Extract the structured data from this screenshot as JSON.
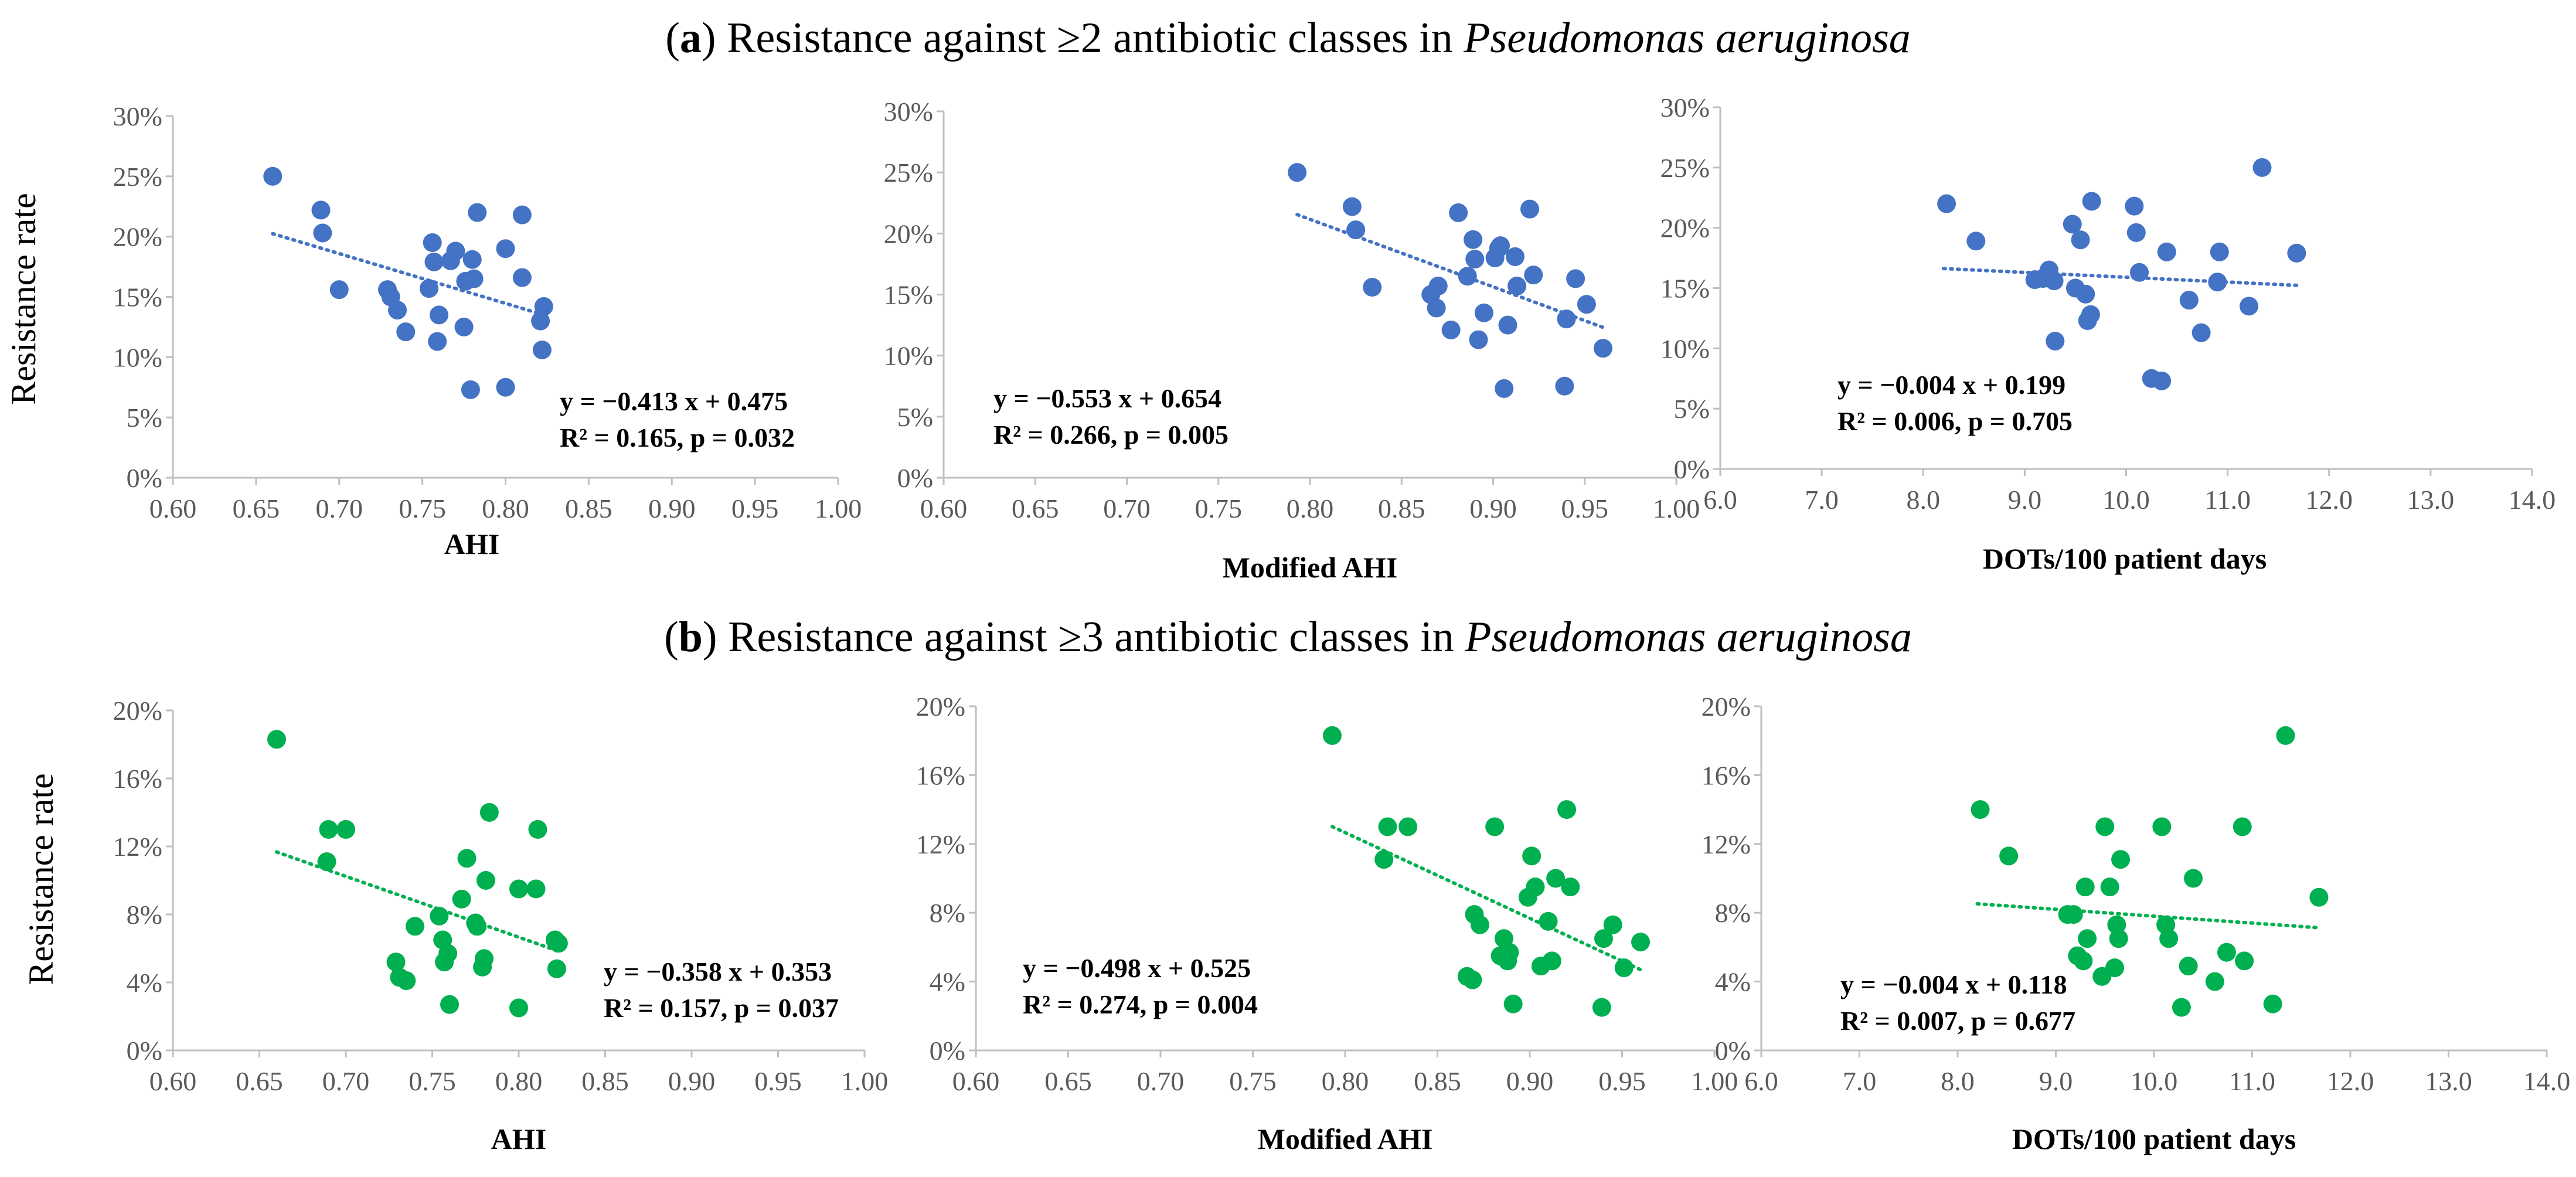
{
  "row_titles": {
    "a": {
      "label": "a",
      "text_before": "Resistance against ≥2 antibiotic classes in ",
      "species": "Pseudomonas aeruginosa"
    },
    "b": {
      "label": "b",
      "text_before": "Resistance against ≥3 antibiotic classes in ",
      "species": "Pseudomonas aeruginosa"
    }
  },
  "colors": {
    "row_a": "#4472c4",
    "row_b": "#00b050",
    "axis": "#bfbfbf",
    "tick_text": "#595959"
  },
  "chart_data": [
    {
      "id": "a1",
      "type": "scatter",
      "row": "a",
      "xlabel": "AHI",
      "ylabel": "Resistance rate",
      "xlim": [
        0.6,
        1.0
      ],
      "xticks": [
        0.6,
        0.65,
        0.7,
        0.75,
        0.8,
        0.85,
        0.9,
        0.95,
        1.0
      ],
      "xdec": 2,
      "ylim": [
        0,
        0.3
      ],
      "yticks": [
        0,
        0.05,
        0.1,
        0.15,
        0.2,
        0.25,
        0.3
      ],
      "trend": {
        "slope": -0.413,
        "intercept": 0.475,
        "x_range": [
          0.66,
          0.823
        ]
      },
      "equation": "y = −0.413 x + 0.475",
      "stats": "R² = 0.165, p = 0.032",
      "points": [
        [
          0.66,
          0.25
        ],
        [
          0.689,
          0.222
        ],
        [
          0.69,
          0.203
        ],
        [
          0.7,
          0.156
        ],
        [
          0.729,
          0.156
        ],
        [
          0.731,
          0.15
        ],
        [
          0.735,
          0.139
        ],
        [
          0.74,
          0.121
        ],
        [
          0.754,
          0.157
        ],
        [
          0.756,
          0.195
        ],
        [
          0.757,
          0.179
        ],
        [
          0.759,
          0.113
        ],
        [
          0.76,
          0.135
        ],
        [
          0.767,
          0.18
        ],
        [
          0.77,
          0.188
        ],
        [
          0.775,
          0.125
        ],
        [
          0.776,
          0.163
        ],
        [
          0.779,
          0.073
        ],
        [
          0.78,
          0.181
        ],
        [
          0.781,
          0.165
        ],
        [
          0.783,
          0.22
        ],
        [
          0.8,
          0.075
        ],
        [
          0.8,
          0.19
        ],
        [
          0.81,
          0.166
        ],
        [
          0.81,
          0.218
        ],
        [
          0.821,
          0.13
        ],
        [
          0.822,
          0.106
        ],
        [
          0.823,
          0.142
        ]
      ]
    },
    {
      "id": "a2",
      "type": "scatter",
      "row": "a",
      "xlabel": "Modified AHI",
      "ylabel": "",
      "xlim": [
        0.6,
        1.0
      ],
      "xticks": [
        0.6,
        0.65,
        0.7,
        0.75,
        0.8,
        0.85,
        0.9,
        0.95,
        1.0
      ],
      "xdec": 2,
      "ylim": [
        0,
        0.3
      ],
      "yticks": [
        0,
        0.05,
        0.1,
        0.15,
        0.2,
        0.25,
        0.3
      ],
      "trend": {
        "slope": -0.553,
        "intercept": 0.654,
        "x_range": [
          0.793,
          0.96
        ]
      },
      "equation": "y = −0.553 x + 0.654",
      "stats": "R² = 0.266, p = 0.005",
      "points": [
        [
          0.793,
          0.25
        ],
        [
          0.823,
          0.222
        ],
        [
          0.825,
          0.203
        ],
        [
          0.834,
          0.156
        ],
        [
          0.866,
          0.15
        ],
        [
          0.869,
          0.139
        ],
        [
          0.87,
          0.157
        ],
        [
          0.877,
          0.121
        ],
        [
          0.881,
          0.217
        ],
        [
          0.886,
          0.165
        ],
        [
          0.889,
          0.195
        ],
        [
          0.89,
          0.179
        ],
        [
          0.892,
          0.113
        ],
        [
          0.895,
          0.135
        ],
        [
          0.901,
          0.18
        ],
        [
          0.903,
          0.188
        ],
        [
          0.906,
          0.073
        ],
        [
          0.908,
          0.125
        ],
        [
          0.912,
          0.181
        ],
        [
          0.913,
          0.157
        ],
        [
          0.92,
          0.22
        ],
        [
          0.922,
          0.166
        ],
        [
          0.939,
          0.075
        ],
        [
          0.94,
          0.13
        ],
        [
          0.945,
          0.163
        ],
        [
          0.951,
          0.142
        ],
        [
          0.96,
          0.106
        ],
        [
          0.904,
          0.19
        ]
      ]
    },
    {
      "id": "a3",
      "type": "scatter",
      "row": "a",
      "xlabel": "DOTs/100 patient days",
      "ylabel": "",
      "xlim": [
        6.0,
        14.0
      ],
      "xticks": [
        6,
        7,
        8,
        9,
        10,
        11,
        12,
        13,
        14
      ],
      "xdec": 1,
      "ylim": [
        0,
        0.3
      ],
      "yticks": [
        0,
        0.05,
        0.1,
        0.15,
        0.2,
        0.25,
        0.3
      ],
      "trend": {
        "slope": -0.004,
        "intercept": 0.199,
        "x_range": [
          8.2,
          11.7
        ]
      },
      "equation": "y = −0.004 x + 0.199",
      "stats": "R² = 0.006, p = 0.705",
      "points": [
        [
          8.23,
          0.22
        ],
        [
          8.52,
          0.189
        ],
        [
          9.1,
          0.157
        ],
        [
          9.21,
          0.16
        ],
        [
          9.24,
          0.165
        ],
        [
          9.29,
          0.156
        ],
        [
          9.3,
          0.106
        ],
        [
          9.47,
          0.203
        ],
        [
          9.5,
          0.15
        ],
        [
          9.55,
          0.19
        ],
        [
          9.6,
          0.145
        ],
        [
          9.62,
          0.123
        ],
        [
          9.65,
          0.128
        ],
        [
          9.66,
          0.222
        ],
        [
          10.08,
          0.218
        ],
        [
          10.1,
          0.196
        ],
        [
          10.13,
          0.163
        ],
        [
          10.25,
          0.075
        ],
        [
          10.35,
          0.073
        ],
        [
          10.4,
          0.18
        ],
        [
          10.62,
          0.14
        ],
        [
          10.74,
          0.113
        ],
        [
          10.9,
          0.155
        ],
        [
          10.92,
          0.18
        ],
        [
          11.21,
          0.135
        ],
        [
          11.34,
          0.25
        ],
        [
          11.68,
          0.179
        ],
        [
          9.18,
          0.158
        ]
      ]
    },
    {
      "id": "b1",
      "type": "scatter",
      "row": "b",
      "xlabel": "AHI",
      "ylabel": "Resistance rate",
      "xlim": [
        0.6,
        1.0
      ],
      "xticks": [
        0.6,
        0.65,
        0.7,
        0.75,
        0.8,
        0.85,
        0.9,
        0.95,
        1.0
      ],
      "xdec": 2,
      "ylim": [
        0,
        0.2
      ],
      "yticks": [
        0,
        0.04,
        0.08,
        0.12,
        0.16,
        0.2
      ],
      "trend": {
        "slope": -0.358,
        "intercept": 0.353,
        "x_range": [
          0.66,
          0.823
        ]
      },
      "equation": "y = −0.358 x + 0.353",
      "stats": "R² = 0.157, p = 0.037",
      "points": [
        [
          0.66,
          0.183
        ],
        [
          0.689,
          0.111
        ],
        [
          0.69,
          0.13
        ],
        [
          0.7,
          0.13
        ],
        [
          0.729,
          0.052
        ],
        [
          0.731,
          0.043
        ],
        [
          0.735,
          0.041
        ],
        [
          0.74,
          0.073
        ],
        [
          0.754,
          0.079
        ],
        [
          0.756,
          0.065
        ],
        [
          0.757,
          0.052
        ],
        [
          0.759,
          0.057
        ],
        [
          0.76,
          0.027
        ],
        [
          0.767,
          0.089
        ],
        [
          0.77,
          0.113
        ],
        [
          0.775,
          0.075
        ],
        [
          0.776,
          0.073
        ],
        [
          0.779,
          0.049
        ],
        [
          0.78,
          0.054
        ],
        [
          0.781,
          0.1
        ],
        [
          0.783,
          0.14
        ],
        [
          0.8,
          0.025
        ],
        [
          0.8,
          0.095
        ],
        [
          0.81,
          0.095
        ],
        [
          0.811,
          0.13
        ],
        [
          0.821,
          0.065
        ],
        [
          0.822,
          0.048
        ],
        [
          0.823,
          0.063
        ]
      ]
    },
    {
      "id": "b2",
      "type": "scatter",
      "row": "b",
      "xlabel": "Modified AHI",
      "ylabel": "",
      "xlim": [
        0.6,
        1.0
      ],
      "xticks": [
        0.6,
        0.65,
        0.7,
        0.75,
        0.8,
        0.85,
        0.9,
        0.95,
        1.0
      ],
      "xdec": 2,
      "ylim": [
        0,
        0.2
      ],
      "yticks": [
        0,
        0.04,
        0.08,
        0.12,
        0.16,
        0.2
      ],
      "trend": {
        "slope": -0.498,
        "intercept": 0.525,
        "x_range": [
          0.793,
          0.96
        ]
      },
      "equation": "y = −0.498 x + 0.525",
      "stats": "R² = 0.274, p = 0.004",
      "points": [
        [
          0.793,
          0.183
        ],
        [
          0.821,
          0.111
        ],
        [
          0.823,
          0.13
        ],
        [
          0.834,
          0.13
        ],
        [
          0.866,
          0.043
        ],
        [
          0.869,
          0.041
        ],
        [
          0.87,
          0.079
        ],
        [
          0.873,
          0.073
        ],
        [
          0.881,
          0.13
        ],
        [
          0.884,
          0.055
        ],
        [
          0.886,
          0.065
        ],
        [
          0.888,
          0.052
        ],
        [
          0.889,
          0.057
        ],
        [
          0.891,
          0.027
        ],
        [
          0.899,
          0.089
        ],
        [
          0.901,
          0.113
        ],
        [
          0.903,
          0.095
        ],
        [
          0.906,
          0.049
        ],
        [
          0.91,
          0.075
        ],
        [
          0.912,
          0.052
        ],
        [
          0.914,
          0.1
        ],
        [
          0.92,
          0.14
        ],
        [
          0.922,
          0.095
        ],
        [
          0.939,
          0.025
        ],
        [
          0.94,
          0.065
        ],
        [
          0.945,
          0.073
        ],
        [
          0.951,
          0.048
        ],
        [
          0.96,
          0.063
        ]
      ]
    },
    {
      "id": "b3",
      "type": "scatter",
      "row": "b",
      "xlabel": "DOTs/100 patient days",
      "ylabel": "",
      "xlim": [
        6.0,
        14.0
      ],
      "xticks": [
        6,
        7,
        8,
        9,
        10,
        11,
        12,
        13,
        14
      ],
      "xdec": 1,
      "ylim": [
        0,
        0.2
      ],
      "yticks": [
        0,
        0.04,
        0.08,
        0.12,
        0.16,
        0.2
      ],
      "trend": {
        "slope": -0.004,
        "intercept": 0.118,
        "x_range": [
          8.2,
          11.7
        ]
      },
      "equation": "y = −0.004 x + 0.118",
      "stats": "R² = 0.007, p = 0.677",
      "points": [
        [
          8.23,
          0.14
        ],
        [
          8.52,
          0.113
        ],
        [
          9.12,
          0.079
        ],
        [
          9.22,
          0.055
        ],
        [
          9.28,
          0.052
        ],
        [
          9.3,
          0.095
        ],
        [
          9.32,
          0.065
        ],
        [
          9.47,
          0.043
        ],
        [
          9.5,
          0.13
        ],
        [
          9.55,
          0.095
        ],
        [
          9.6,
          0.048
        ],
        [
          9.62,
          0.073
        ],
        [
          9.64,
          0.065
        ],
        [
          9.66,
          0.111
        ],
        [
          10.08,
          0.13
        ],
        [
          10.12,
          0.073
        ],
        [
          10.15,
          0.065
        ],
        [
          10.28,
          0.025
        ],
        [
          10.35,
          0.049
        ],
        [
          10.4,
          0.1
        ],
        [
          10.62,
          0.04
        ],
        [
          10.74,
          0.057
        ],
        [
          10.9,
          0.13
        ],
        [
          10.92,
          0.052
        ],
        [
          11.21,
          0.027
        ],
        [
          11.34,
          0.183
        ],
        [
          11.68,
          0.089
        ],
        [
          9.18,
          0.079
        ]
      ]
    }
  ]
}
